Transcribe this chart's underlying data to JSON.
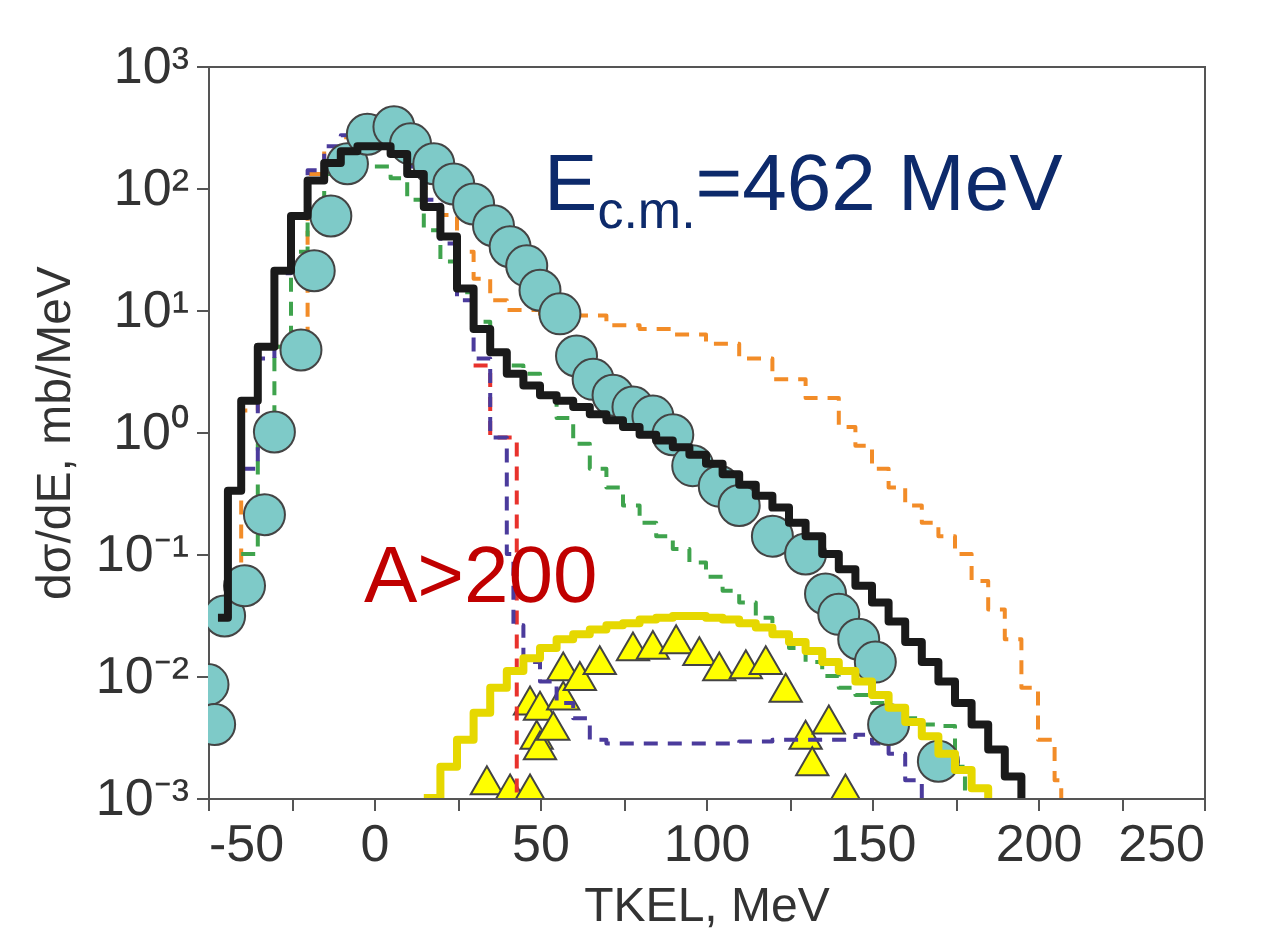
{
  "chart_data": {
    "type": "step",
    "xlabel": "TKEL, MeV",
    "ylabel": "dσ/dE, mb/MeV",
    "log": "y",
    "xlim": [
      -50,
      250
    ],
    "xticks": [
      -50,
      {
        "value": -25,
        "label": null
      },
      0,
      {
        "value": 25,
        "label": null
      },
      50,
      {
        "value": 75,
        "label": null
      },
      100,
      {
        "value": 125,
        "label": null
      },
      150,
      {
        "value": 175,
        "label": null
      },
      200,
      {
        "value": 225,
        "label": null
      },
      250
    ],
    "ylim": [
      0.001,
      1000
    ],
    "yticks": [
      {
        "value": 0.001,
        "label": "10⁻³"
      },
      {
        "value": 0.01,
        "label": "10⁻²"
      },
      {
        "value": 0.1,
        "label": "10⁻¹"
      },
      {
        "value": 1,
        "label": "10⁰"
      },
      {
        "value": 10,
        "label": "10¹"
      },
      {
        "value": 100,
        "label": "10²"
      },
      {
        "value": 1000,
        "label": "10³"
      }
    ],
    "annotations": [
      "E$_{c.m.}$=462 MeV",
      "A>200"
    ],
    "series": [
      {
        "type": "scatter",
        "color": "#ffff00",
        "marker": "triangle",
        "x": [
          34,
          41,
          47,
          47,
          49,
          50,
          50,
          54,
          57,
          57,
          62,
          68,
          78,
          84,
          91,
          98,
          104,
          112,
          118,
          124,
          130,
          132,
          137,
          142
        ],
        "values": [
          0.0014,
          0.0012,
          0.0012,
          0.0063,
          0.0033,
          0.0027,
          0.0057,
          0.0039,
          0.012,
          0.0069,
          0.01,
          0.0135,
          0.0175,
          0.018,
          0.02,
          0.016,
          0.012,
          0.0125,
          0.0135,
          0.008,
          0.0033,
          0.002,
          0.0044,
          0.0012
        ]
      },
      {
        "color": "#f28c28",
        "line_style": "dashed",
        "x": [
          -45,
          -40,
          -35,
          -30,
          -25,
          -20,
          -15,
          -10,
          -5,
          0,
          5,
          10,
          15,
          20,
          25,
          30,
          35,
          40,
          50,
          60,
          70,
          80,
          90,
          100,
          110,
          120,
          130,
          140,
          145,
          150,
          155,
          160,
          165,
          170,
          175,
          180,
          185,
          190,
          195,
          200,
          205,
          207
        ],
        "values": [
          0.03,
          1.5,
          5,
          null,
          null,
          130,
          200,
          260,
          null,
          null,
          null,
          null,
          100,
          60,
          30,
          18,
          12,
          10,
          9,
          null,
          7.5,
          7,
          6.3,
          5.3,
          4,
          2.7,
          1.9,
          1.1,
          0.77,
          0.5,
          0.35,
          0.25,
          0.18,
          0.14,
          0.1,
          0.06,
          0.035,
          0.02,
          0.008,
          0.003,
          0.0014,
          0.001
        ]
      },
      {
        "color": "#3fa34d",
        "line_style": "dashed",
        "x": [
          -40,
          -35,
          -30,
          -25,
          -20,
          -15,
          -10,
          -5,
          0,
          5,
          10,
          15,
          20,
          25,
          30,
          35,
          40,
          45,
          50,
          55,
          60,
          65,
          70,
          75,
          80,
          85,
          90,
          95,
          100,
          105,
          110,
          115,
          120,
          125,
          130,
          135,
          140,
          145,
          150,
          155,
          160,
          165,
          170,
          175,
          178
        ],
        "values": [
          0.1,
          0.8,
          5,
          30,
          80,
          130,
          160,
          null,
          150,
          120,
          80,
          45,
          25,
          14,
          8,
          4.5,
          3.5,
          3,
          2,
          1.3,
          0.8,
          0.5,
          0.35,
          0.25,
          0.18,
          0.14,
          0.11,
          0.085,
          0.065,
          0.05,
          0.04,
          0.03,
          0.022,
          0.017,
          0.013,
          0.01,
          0.008,
          0.007,
          0.006,
          0.005,
          0.0045,
          0.004,
          0.0039,
          0.0018,
          0.001
        ]
      },
      {
        "color": "#e8322c",
        "line_style": "dashed",
        "x": [
          30,
          35,
          43
        ],
        "values": [
          3.5,
          0.9,
          0.001
        ]
      },
      {
        "color": "#4b3b9c",
        "line_style": "dashed",
        "x": [
          -40,
          -35,
          -30,
          -25,
          -20,
          -15,
          -10,
          -5,
          0,
          5,
          10,
          15,
          20,
          25,
          30,
          35,
          40,
          42,
          45,
          50,
          55,
          60,
          65,
          70,
          80,
          90,
          100,
          110,
          120,
          130,
          140,
          145,
          150,
          155,
          160,
          165
        ],
        "values": [
          0.5,
          4,
          20,
          60,
          140,
          220,
          270,
          null,
          null,
          null,
          150,
          80,
          35,
          12,
          4,
          0.9,
          0.1,
          0.026,
          0.013,
          0.009,
          0.006,
          0.0045,
          0.003,
          0.0028,
          0.0028,
          0.0028,
          0.0028,
          0.0029,
          0.003,
          0.003,
          0.003,
          0.0033,
          0.0028,
          0.0023,
          0.0014,
          0.001
        ]
      },
      {
        "type": "scatter",
        "color": "#7ecac8",
        "marker": "circle",
        "x": [
          -50,
          -48,
          -45,
          -39,
          -33,
          -30,
          -22,
          -18,
          -13,
          -8,
          -2,
          6,
          11,
          18,
          24,
          30,
          36,
          41,
          46,
          50,
          56,
          61,
          66,
          72,
          78,
          84,
          90,
          96,
          104,
          110,
          120,
          130,
          136,
          140,
          146,
          151,
          155,
          170
        ],
        "values": [
          0.0085,
          0.004,
          0.031,
          0.055,
          0.21,
          1,
          4.7,
          21,
          59,
          158,
          276,
          318,
          230,
          158,
          108,
          74,
          49,
          33,
          23,
          14.5,
          9.3,
          4.2,
          2.7,
          2,
          1.6,
          1.35,
          0.95,
          0.53,
          0.36,
          0.25,
          0.14,
          0.1,
          0.047,
          0.032,
          0.02,
          0.013,
          0.004,
          0.002
        ]
      },
      {
        "color": "#1a1a1a",
        "x": [
          -47,
          -44,
          -40,
          -35,
          -30,
          -25,
          -20,
          -15,
          -10,
          -5,
          0,
          5,
          10,
          15,
          20,
          25,
          30,
          35,
          40,
          45,
          50,
          55,
          60,
          65,
          70,
          75,
          80,
          85,
          90,
          95,
          100,
          105,
          110,
          115,
          120,
          125,
          130,
          135,
          140,
          145,
          150,
          155,
          160,
          165,
          170,
          175,
          180,
          185,
          190,
          195
        ],
        "values": [
          0.03,
          0.33,
          1.8,
          5,
          21,
          59,
          115,
          160,
          200,
          220,
          220,
          190,
          130,
          70,
          40,
          15,
          7,
          4.5,
          3,
          2.4,
          2,
          1.8,
          1.6,
          1.4,
          1.25,
          1.1,
          0.95,
          0.85,
          0.75,
          0.65,
          0.55,
          0.45,
          0.37,
          0.3,
          0.24,
          0.18,
          0.14,
          0.1,
          0.075,
          0.055,
          0.04,
          0.028,
          0.019,
          0.013,
          0.009,
          0.006,
          0.004,
          0.0025,
          0.0015,
          0.001
        ]
      },
      {
        "color": "#e6d800",
        "x": [
          15,
          20,
          25,
          30,
          35,
          40,
          45,
          50,
          55,
          60,
          65,
          70,
          75,
          80,
          85,
          90,
          95,
          100,
          105,
          110,
          115,
          120,
          125,
          130,
          135,
          140,
          145,
          150,
          155,
          160,
          165,
          170,
          175,
          180,
          185
        ],
        "values": [
          0.001,
          0.0018,
          0.003,
          0.005,
          0.008,
          0.011,
          0.014,
          0.017,
          0.02,
          0.022,
          0.024,
          0.026,
          0.027,
          0.029,
          0.03,
          0.031,
          0.031,
          0.03,
          0.029,
          0.027,
          0.025,
          0.022,
          0.019,
          0.016,
          0.013,
          0.011,
          0.009,
          0.007,
          0.0055,
          0.0042,
          0.0032,
          0.0023,
          0.0017,
          0.0012,
          0.001
        ]
      }
    ]
  }
}
